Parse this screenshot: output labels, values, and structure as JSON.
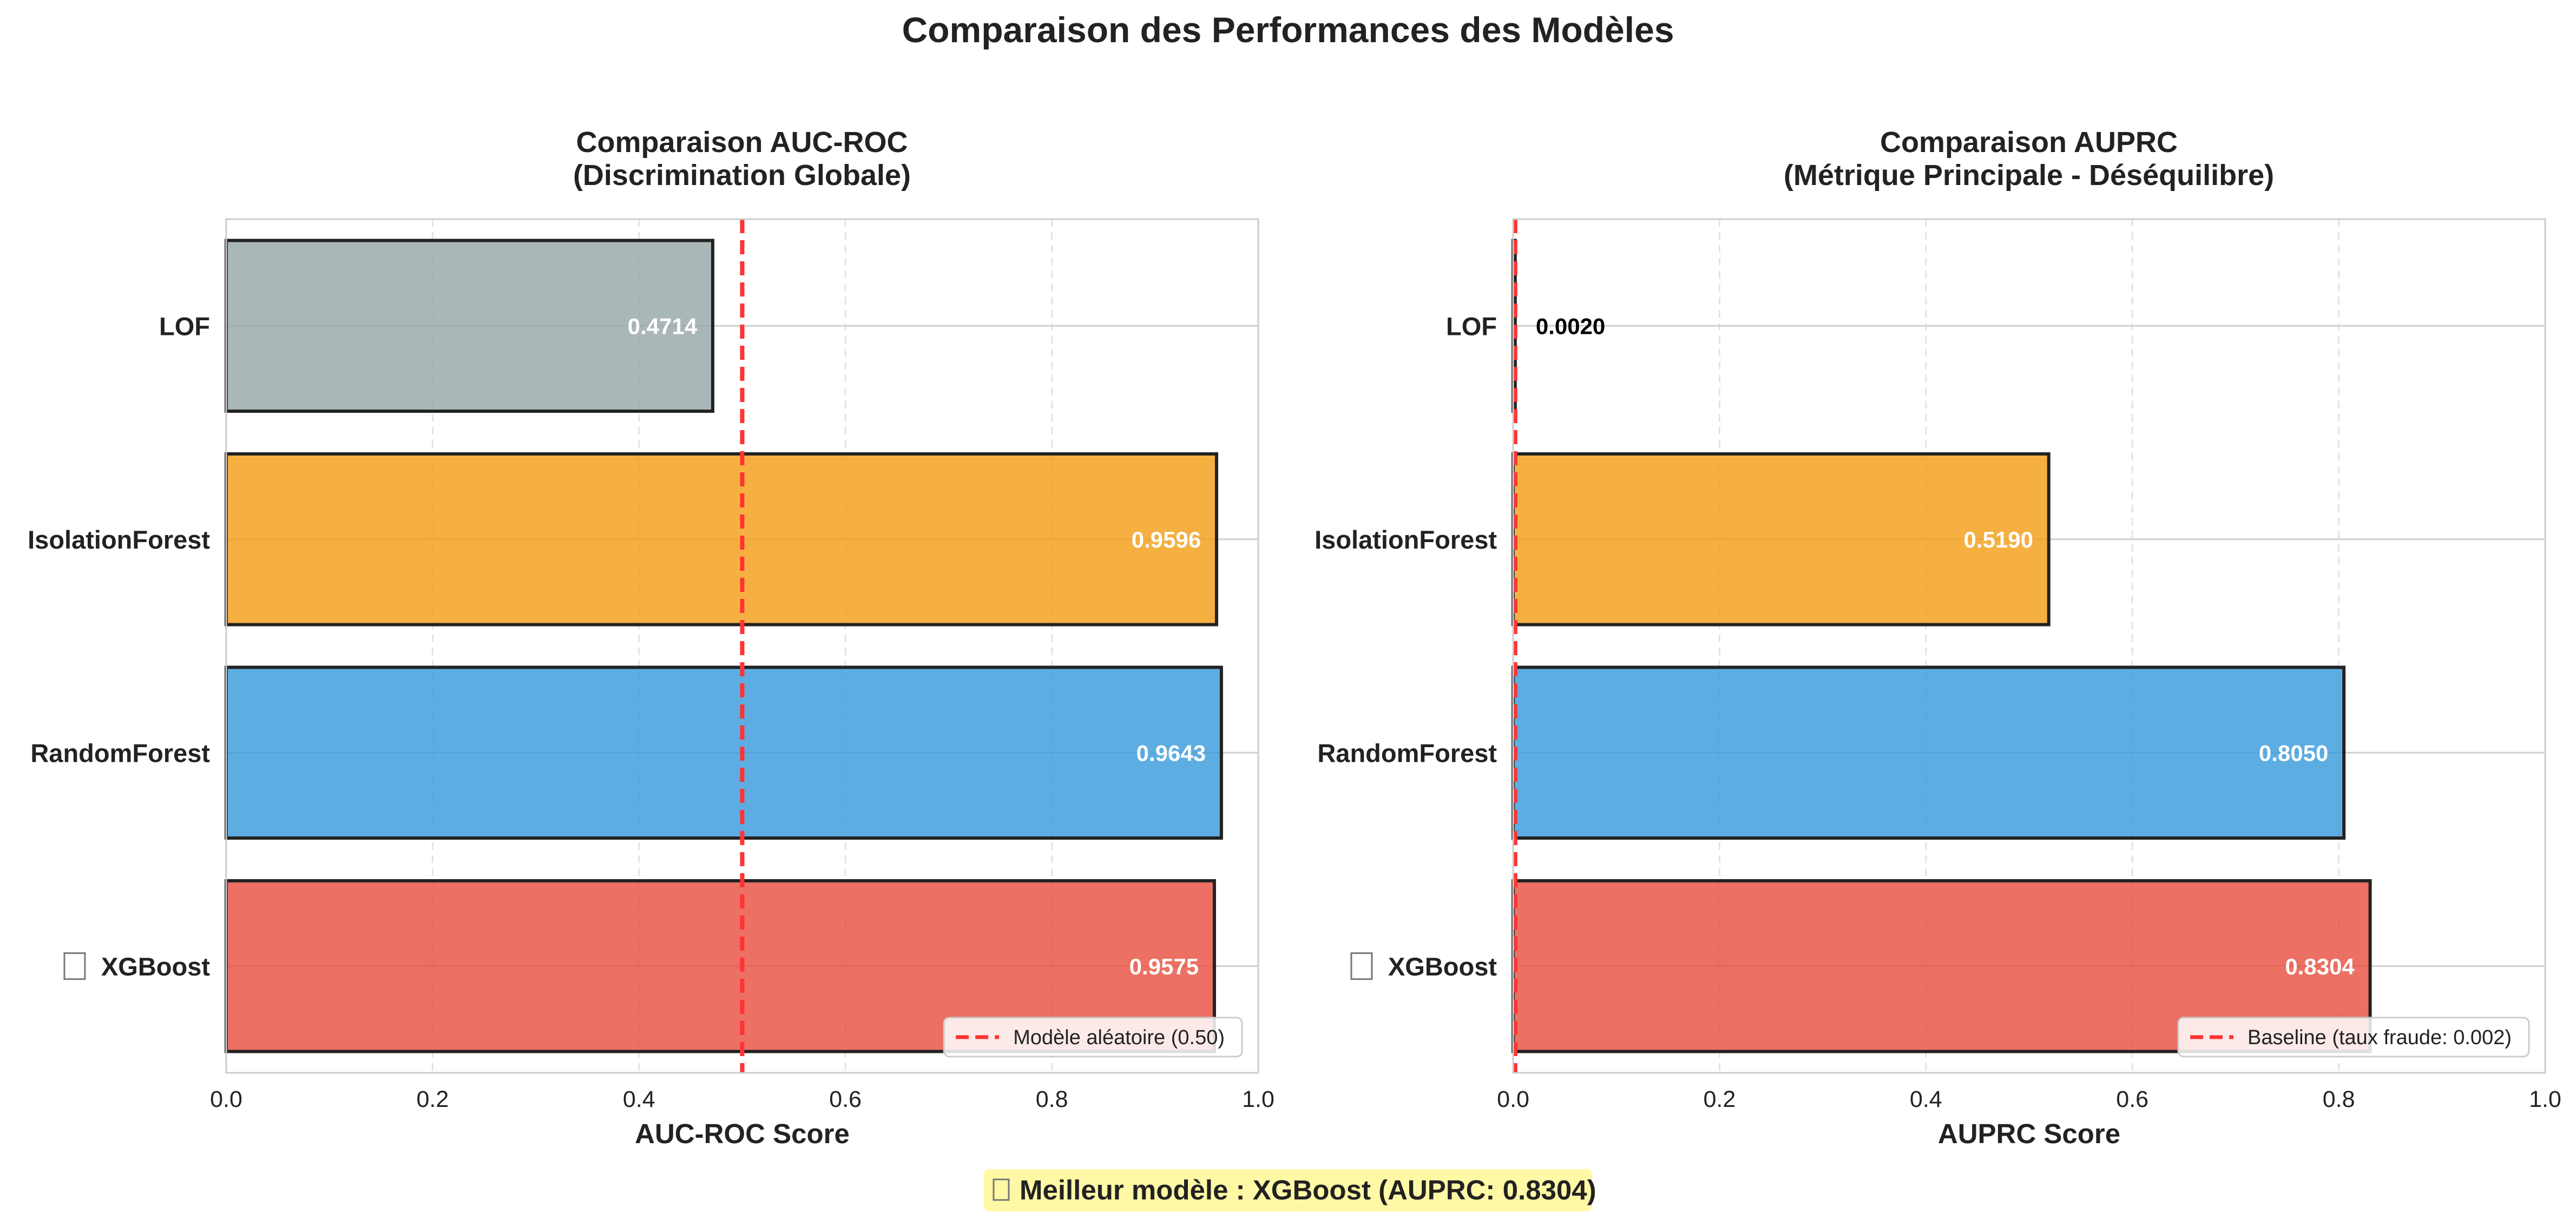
{
  "figure": {
    "suptitle": "Comparaison des Performances des Modèles",
    "footer_note": "Meilleur modèle : XGBoost (AUPRC: 0.8304)",
    "footer_bg": "#fff9a6",
    "star_icon": "star-icon"
  },
  "colors": {
    "LOF": "#95a5a6",
    "IsolationForest": "#f39c12",
    "RandomForest": "#3498db",
    "XGBoost": "#e74c3c",
    "reference_line": "#ff3333"
  },
  "chart_data": [
    {
      "type": "bar",
      "orientation": "horizontal",
      "title": "Comparaison AUC-ROC",
      "subtitle": "(Discrimination Globale)",
      "xlabel": "AUC-ROC Score",
      "ylabel": "",
      "xlim": [
        0.0,
        1.0
      ],
      "xticks": [
        "0.0",
        "0.2",
        "0.4",
        "0.6",
        "0.8",
        "1.0"
      ],
      "grid": true,
      "categories": [
        "LOF",
        "IsolationForest",
        "RandomForest",
        "XGBoost"
      ],
      "values": [
        0.4714,
        0.9596,
        0.9643,
        0.9575
      ],
      "value_labels": [
        "0.4714",
        "0.9596",
        "0.9643",
        "0.9575"
      ],
      "best_model": "XGBoost",
      "reference_line": {
        "x": 0.5,
        "label": "Modèle aléatoire (0.50)"
      },
      "legend_position": "lower right"
    },
    {
      "type": "bar",
      "orientation": "horizontal",
      "title": "Comparaison AUPRC",
      "subtitle": "(Métrique Principale - Déséquilibre)",
      "xlabel": "AUPRC Score",
      "ylabel": "",
      "xlim": [
        0.0,
        1.0
      ],
      "xticks": [
        "0.0",
        "0.2",
        "0.4",
        "0.6",
        "0.8",
        "1.0"
      ],
      "grid": true,
      "categories": [
        "LOF",
        "IsolationForest",
        "RandomForest",
        "XGBoost"
      ],
      "values": [
        0.002,
        0.519,
        0.805,
        0.8304
      ],
      "value_labels": [
        "0.0020",
        "0.5190",
        "0.8050",
        "0.8304"
      ],
      "best_model": "XGBoost",
      "reference_line": {
        "x": 0.002,
        "label": "Baseline (taux fraude: 0.002)"
      },
      "legend_position": "lower right"
    }
  ]
}
